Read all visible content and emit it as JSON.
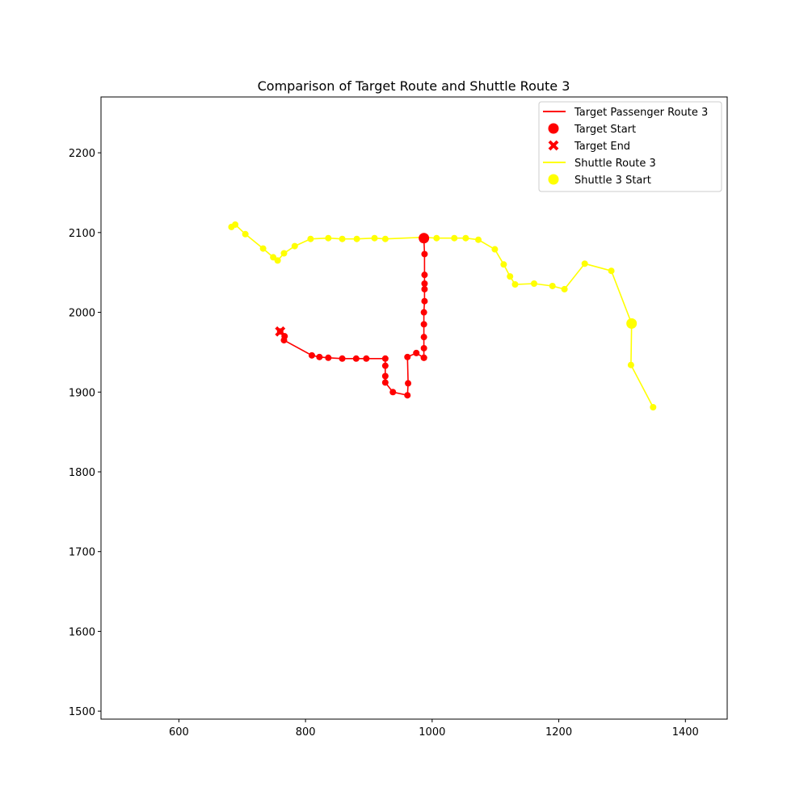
{
  "chart_data": {
    "type": "line",
    "title": "Comparison of Target Route and Shuttle Route 3",
    "xlabel": "",
    "ylabel": "",
    "xlim": [
      477,
      1466
    ],
    "ylim": [
      1490,
      2270
    ],
    "xticks": [
      600,
      800,
      1000,
      1200,
      1400
    ],
    "yticks": [
      1500,
      1600,
      1700,
      1800,
      1900,
      2000,
      2100,
      2200
    ],
    "grid": false,
    "legend_position": "top-right",
    "legend": [
      {
        "label": "Target Passenger Route 3",
        "kind": "line",
        "color": "#ff0000"
      },
      {
        "label": "Target Start",
        "kind": "circle",
        "color": "#ff0000"
      },
      {
        "label": "Target End",
        "kind": "x",
        "color": "#ff0000"
      },
      {
        "label": "Shuttle Route 3",
        "kind": "line",
        "color": "#ffff00"
      },
      {
        "label": "Shuttle 3 Start",
        "kind": "circle",
        "color": "#ffff00"
      }
    ],
    "series": [
      {
        "name": "Shuttle Route 3",
        "color": "#ffff00",
        "x": [
          683,
          689,
          705,
          733,
          749,
          756,
          766,
          783,
          808,
          836,
          858,
          881,
          909,
          926,
          986,
          1007,
          1035,
          1053,
          1073,
          1099,
          1113,
          1123,
          1131,
          1161,
          1190,
          1209,
          1241,
          1283,
          1315,
          1314,
          1349
        ],
        "y": [
          2107,
          2110,
          2098,
          2080,
          2069,
          2065,
          2074,
          2083,
          2092,
          2093,
          2092,
          2092,
          2093,
          2092,
          2094,
          2093,
          2093,
          2093,
          2091,
          2079,
          2060,
          2045,
          2035,
          2036,
          2033,
          2029,
          2061,
          2052,
          1986,
          1934,
          1881
        ]
      },
      {
        "name": "Target Passenger Route 3",
        "color": "#ff0000",
        "x": [
          987,
          988,
          988,
          988,
          988,
          988,
          987,
          987,
          987,
          987,
          987,
          987,
          975,
          961,
          962,
          961,
          938,
          926,
          926,
          926,
          926,
          896,
          880,
          858,
          836,
          822,
          810,
          766,
          767,
          760
        ],
        "y": [
          2093,
          2073,
          2047,
          2036,
          2029,
          2014,
          2000,
          1985,
          1969,
          1955,
          1943,
          1943,
          1949,
          1944,
          1911,
          1896,
          1900,
          1912,
          1920,
          1933,
          1942,
          1942,
          1942,
          1942,
          1943,
          1944,
          1946,
          1965,
          1970,
          1976
        ]
      }
    ],
    "markers": {
      "target_start": {
        "x": 987,
        "y": 2093
      },
      "target_end": {
        "x": 760,
        "y": 1976
      },
      "shuttle_start": {
        "x": 1315,
        "y": 1986
      }
    }
  }
}
